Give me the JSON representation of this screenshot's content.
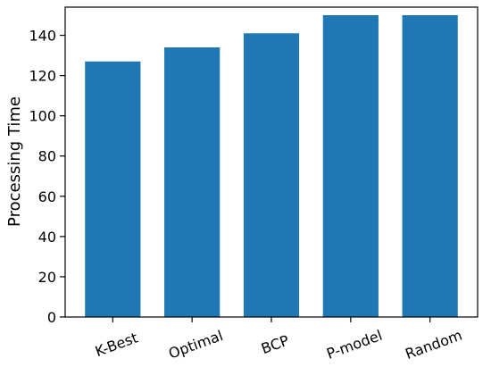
{
  "chart_data": {
    "type": "bar",
    "title": "",
    "xlabel": "",
    "ylabel": "Processing Time",
    "categories": [
      "K-Best",
      "Optimal",
      "BCP",
      "P-model",
      "Random"
    ],
    "values": [
      127,
      134,
      141,
      150,
      150
    ],
    "ylim": [
      0,
      154
    ],
    "yticks": [
      0,
      20,
      40,
      60,
      80,
      100,
      120,
      140
    ],
    "bar_color": "#1f77b4",
    "grid": false,
    "legend": "none"
  }
}
